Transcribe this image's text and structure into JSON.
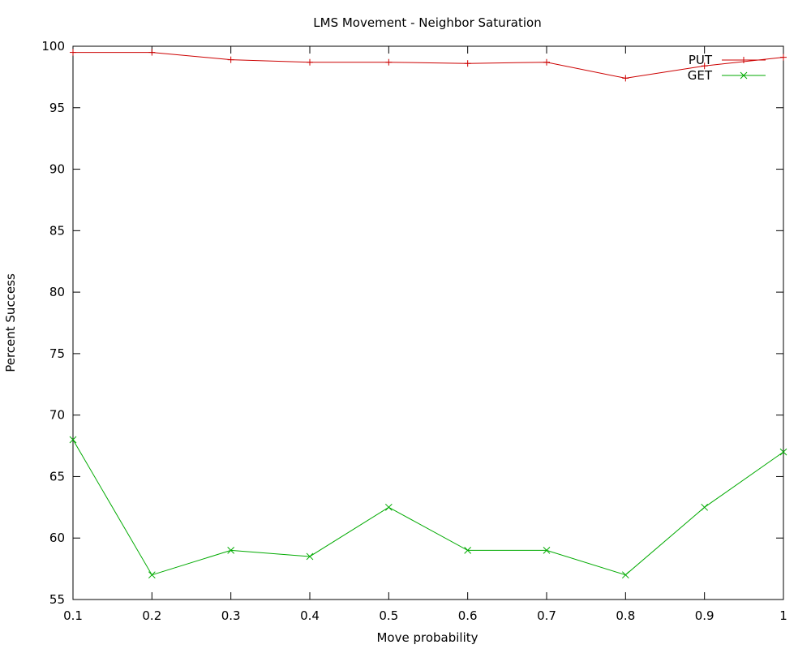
{
  "chart_data": {
    "type": "line",
    "title": "LMS Movement - Neighbor Saturation",
    "xlabel": "Move probability",
    "ylabel": "Percent Success",
    "x": [
      0.1,
      0.2,
      0.3,
      0.4,
      0.5,
      0.6,
      0.7,
      0.8,
      0.9,
      1
    ],
    "xticks": [
      "0.1",
      "0.2",
      "0.3",
      "0.4",
      "0.5",
      "0.6",
      "0.7",
      "0.8",
      "0.9",
      "1"
    ],
    "yticks": [
      "55",
      "60",
      "65",
      "70",
      "75",
      "80",
      "85",
      "90",
      "95",
      "100"
    ],
    "xlim": [
      0.1,
      1
    ],
    "ylim": [
      55,
      100
    ],
    "grid": false,
    "legend_position": "top-right",
    "series": [
      {
        "name": "PUT",
        "color": "#cc0000",
        "marker": "plus",
        "values": [
          99.5,
          99.5,
          98.9,
          98.7,
          98.7,
          98.6,
          98.7,
          97.4,
          98.4,
          99.1
        ]
      },
      {
        "name": "GET",
        "color": "#00aa00",
        "marker": "cross",
        "values": [
          68.0,
          57.0,
          59.0,
          58.5,
          62.5,
          59.0,
          59.0,
          57.0,
          62.5,
          67.0
        ]
      }
    ]
  }
}
